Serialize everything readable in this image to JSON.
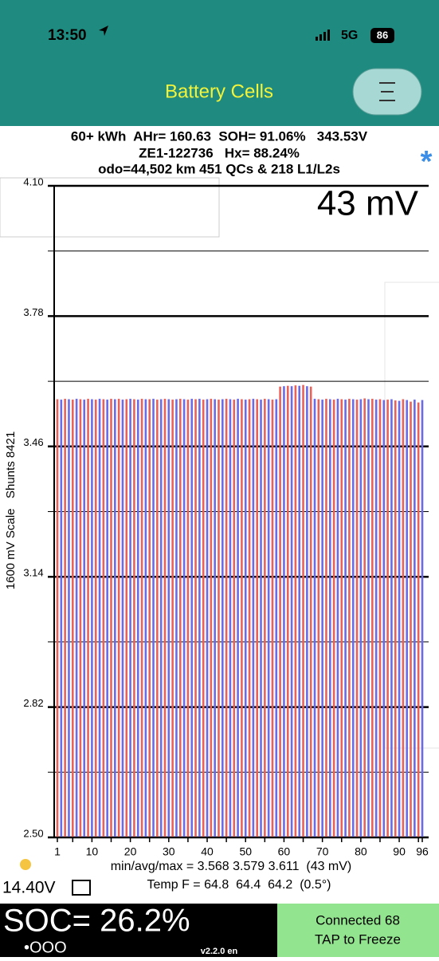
{
  "status_bar": {
    "time": "13:50",
    "network": "5G",
    "battery": "86"
  },
  "header": {
    "title": "Battery Cells"
  },
  "summary": {
    "line1": "60+ kWh  AHr= 160.63  SOH= 91.06%   343.53V",
    "line2": "ZE1-122736   Hx= 88.24%",
    "line3": "odo=44,502 km 451 QCs & 218 L1/L2s",
    "spread": "43 mV",
    "marker": "*"
  },
  "chart_data": {
    "type": "bar",
    "y_label": "1600 mV Scale   Shunts 8421",
    "x": [
      1,
      2,
      3,
      4,
      5,
      6,
      7,
      8,
      9,
      10,
      11,
      12,
      13,
      14,
      15,
      16,
      17,
      18,
      19,
      20,
      21,
      22,
      23,
      24,
      25,
      26,
      27,
      28,
      29,
      30,
      31,
      32,
      33,
      34,
      35,
      36,
      37,
      38,
      39,
      40,
      41,
      42,
      43,
      44,
      45,
      46,
      47,
      48,
      49,
      50,
      51,
      52,
      53,
      54,
      55,
      56,
      57,
      58,
      59,
      60,
      61,
      62,
      63,
      64,
      65,
      66,
      67,
      68,
      69,
      70,
      71,
      72,
      73,
      74,
      75,
      76,
      77,
      78,
      79,
      80,
      81,
      82,
      83,
      84,
      85,
      86,
      87,
      88,
      89,
      90,
      91,
      92,
      93,
      94,
      95,
      96
    ],
    "values": [
      3.576,
      3.575,
      3.577,
      3.576,
      3.575,
      3.577,
      3.576,
      3.575,
      3.577,
      3.576,
      3.575,
      3.577,
      3.576,
      3.575,
      3.577,
      3.576,
      3.577,
      3.575,
      3.576,
      3.577,
      3.576,
      3.575,
      3.577,
      3.576,
      3.576,
      3.577,
      3.575,
      3.576,
      3.577,
      3.576,
      3.575,
      3.576,
      3.577,
      3.576,
      3.575,
      3.577,
      3.576,
      3.577,
      3.575,
      3.576,
      3.577,
      3.576,
      3.575,
      3.576,
      3.577,
      3.576,
      3.575,
      3.577,
      3.576,
      3.575,
      3.576,
      3.577,
      3.576,
      3.575,
      3.577,
      3.576,
      3.575,
      3.576,
      3.607,
      3.608,
      3.609,
      3.608,
      3.61,
      3.609,
      3.611,
      3.608,
      3.607,
      3.577,
      3.576,
      3.575,
      3.577,
      3.576,
      3.575,
      3.577,
      3.576,
      3.575,
      3.577,
      3.576,
      3.575,
      3.576,
      3.578,
      3.576,
      3.577,
      3.575,
      3.576,
      3.574,
      3.575,
      3.576,
      3.573,
      3.572,
      3.576,
      3.574,
      3.57,
      3.575,
      3.568,
      3.574
    ],
    "colors": [
      "#e8625c",
      "#6b6be6"
    ],
    "ylim": [
      2.5,
      4.1
    ],
    "yticks": [
      {
        "value": 2.5,
        "label": "2.50"
      },
      2.82,
      3.14,
      3.46,
      3.78,
      {
        "value": 4.1,
        "label": "4.10"
      }
    ],
    "minor_yticks": [
      2.66,
      2.98,
      3.3,
      3.62,
      3.94
    ],
    "xlim": [
      1,
      96
    ],
    "xticks": [
      1,
      10,
      20,
      30,
      40,
      50,
      60,
      70,
      80,
      90,
      96
    ],
    "minor_xticks": [
      5,
      15,
      25,
      35,
      45,
      55,
      65,
      75,
      85,
      95
    ]
  },
  "footer": {
    "stats": "min/avg/max = 3.568 3.579 3.611  (43 mV)",
    "temp": "Temp F = 64.8  64.4  64.2  (0.5°)",
    "voltage": "14.40V",
    "soc": "SOC= 26.2%",
    "dots": "•OOO",
    "version": "v2.2.0 en",
    "connected": "Connected 68",
    "tap": "TAP to Freeze"
  }
}
